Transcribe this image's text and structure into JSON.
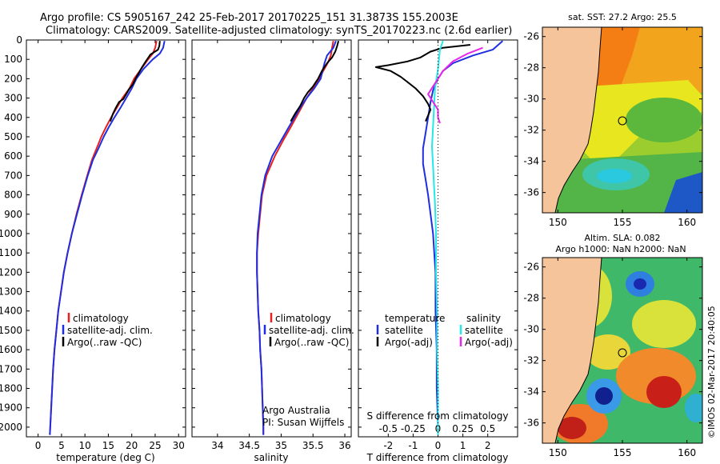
{
  "header": {
    "line1": "Argo profile: CS 5905167_242 25-Feb-2017 20170225_151 31.3873S 155.2003E",
    "line2": "Climatology: CARS2009. Satellite-adjusted climatology: synTS_20170223.nc (2.6d earlier)"
  },
  "depth_ticks": [
    "0",
    "100",
    "200",
    "300",
    "400",
    "500",
    "600",
    "700",
    "800",
    "900",
    "1000",
    "1100",
    "1200",
    "1300",
    "1400",
    "1500",
    "1600",
    "1700",
    "1800",
    "1900",
    "2000"
  ],
  "colors": {
    "climatology": "#e8201f",
    "satellite": "#1f2ee0",
    "argo": "#000000",
    "sal_sat": "#26e8e8",
    "sal_argo": "#e826e8",
    "land": "#f6c49a"
  },
  "chart_data": [
    {
      "type": "line",
      "id": "temperature",
      "xlabel": "temperature (deg C)",
      "xticks": [
        "0",
        "5",
        "10",
        "15",
        "20",
        "25",
        "30"
      ],
      "xlim": [
        -2.5,
        31.5
      ],
      "ylim": [
        0,
        2050
      ],
      "legend": [
        "climatology",
        "satellite-adj. clim.",
        "Argo(..raw -QC)"
      ],
      "series": [
        {
          "name": "climatology",
          "color": "#e8201f",
          "points": [
            [
              25.3,
              5
            ],
            [
              25,
              40
            ],
            [
              24.5,
              70
            ],
            [
              23.5,
              100
            ],
            [
              22,
              150
            ],
            [
              20.5,
              200
            ],
            [
              19.5,
              250
            ],
            [
              18,
              300
            ],
            [
              16.8,
              350
            ],
            [
              15.6,
              400
            ],
            [
              14.5,
              450
            ],
            [
              13.5,
              500
            ],
            [
              12.5,
              560
            ],
            [
              11.5,
              620
            ],
            [
              10.5,
              700
            ],
            [
              9.3,
              800
            ],
            [
              8.2,
              900
            ],
            [
              7.2,
              1000
            ],
            [
              6.3,
              1100
            ],
            [
              5.5,
              1200
            ],
            [
              4.9,
              1300
            ],
            [
              4.3,
              1400
            ],
            [
              3.9,
              1500
            ],
            [
              3.5,
              1600
            ],
            [
              3.2,
              1700
            ],
            [
              3,
              1800
            ],
            [
              2.8,
              1900
            ],
            [
              2.6,
              2000
            ],
            [
              2.5,
              2040
            ]
          ]
        },
        {
          "name": "satellite-adj. clim.",
          "color": "#1f2ee0",
          "points": [
            [
              27,
              5
            ],
            [
              26.7,
              40
            ],
            [
              26,
              70
            ],
            [
              24.5,
              100
            ],
            [
              22.5,
              150
            ],
            [
              21,
              200
            ],
            [
              20,
              250
            ],
            [
              18.8,
              300
            ],
            [
              17.6,
              350
            ],
            [
              16.3,
              400
            ],
            [
              15.1,
              450
            ],
            [
              14,
              500
            ],
            [
              12.9,
              560
            ],
            [
              11.7,
              620
            ],
            [
              10.6,
              700
            ],
            [
              9.4,
              800
            ],
            [
              8.3,
              900
            ],
            [
              7.2,
              1000
            ],
            [
              6.3,
              1100
            ],
            [
              5.5,
              1200
            ],
            [
              4.9,
              1300
            ],
            [
              4.3,
              1400
            ],
            [
              3.9,
              1500
            ],
            [
              3.5,
              1600
            ],
            [
              3.2,
              1700
            ],
            [
              3,
              1800
            ],
            [
              2.8,
              1900
            ],
            [
              2.6,
              2000
            ],
            [
              2.5,
              2040
            ]
          ]
        },
        {
          "name": "Argo(..raw -QC)",
          "color": "#000000",
          "points": [
            [
              26,
              5
            ],
            [
              25.9,
              30
            ],
            [
              25.6,
              50
            ],
            [
              24,
              75
            ],
            [
              23,
              110
            ],
            [
              22.2,
              140
            ],
            [
              21.5,
              170
            ],
            [
              20.8,
              200
            ],
            [
              20.2,
              230
            ],
            [
              19.4,
              255
            ],
            [
              18.8,
              280
            ],
            [
              18.2,
              305
            ],
            [
              17.3,
              320
            ],
            [
              16.6,
              350
            ],
            [
              16,
              380
            ],
            [
              15.4,
              420
            ]
          ]
        }
      ]
    },
    {
      "type": "line",
      "id": "salinity",
      "xlabel": "salinity",
      "xticks": [
        "34",
        "34.5",
        "35",
        "35.5",
        "36"
      ],
      "xlim": [
        33.6,
        36.1
      ],
      "ylim": [
        0,
        2050
      ],
      "legend": [
        "climatology",
        "satellite-adj. clim.",
        "Argo(..raw -QC)"
      ],
      "annotation": [
        "Argo Australia",
        "PI: Susan Wijffels"
      ],
      "series": [
        {
          "name": "climatology",
          "color": "#e8201f",
          "points": [
            [
              35.82,
              5
            ],
            [
              35.8,
              40
            ],
            [
              35.78,
              80
            ],
            [
              35.73,
              120
            ],
            [
              35.66,
              160
            ],
            [
              35.6,
              200
            ],
            [
              35.5,
              250
            ],
            [
              35.4,
              300
            ],
            [
              35.3,
              360
            ],
            [
              35.15,
              450
            ],
            [
              35.03,
              520
            ],
            [
              34.9,
              600
            ],
            [
              34.77,
              700
            ],
            [
              34.7,
              800
            ],
            [
              34.67,
              900
            ],
            [
              34.64,
              1000
            ],
            [
              34.62,
              1100
            ],
            [
              34.62,
              1200
            ],
            [
              34.63,
              1300
            ],
            [
              34.64,
              1400
            ],
            [
              34.66,
              1500
            ],
            [
              34.67,
              1600
            ],
            [
              34.69,
              1700
            ],
            [
              34.7,
              1800
            ],
            [
              34.71,
              1900
            ],
            [
              34.72,
              2000
            ],
            [
              34.72,
              2040
            ]
          ]
        },
        {
          "name": "satellite-adj. clim.",
          "color": "#1f2ee0",
          "points": [
            [
              35.86,
              5
            ],
            [
              35.82,
              40
            ],
            [
              35.72,
              80
            ],
            [
              35.68,
              120
            ],
            [
              35.65,
              160
            ],
            [
              35.62,
              200
            ],
            [
              35.52,
              250
            ],
            [
              35.4,
              300
            ],
            [
              35.28,
              360
            ],
            [
              35.12,
              450
            ],
            [
              35,
              520
            ],
            [
              34.86,
              600
            ],
            [
              34.75,
              700
            ],
            [
              34.69,
              800
            ],
            [
              34.66,
              900
            ],
            [
              34.63,
              1000
            ],
            [
              34.62,
              1100
            ],
            [
              34.62,
              1200
            ],
            [
              34.63,
              1300
            ],
            [
              34.64,
              1400
            ],
            [
              34.66,
              1500
            ],
            [
              34.67,
              1600
            ],
            [
              34.69,
              1700
            ],
            [
              34.7,
              1800
            ],
            [
              34.71,
              1900
            ],
            [
              34.72,
              2000
            ],
            [
              34.72,
              2040
            ]
          ]
        },
        {
          "name": "Argo(..raw -QC)",
          "color": "#000000",
          "points": [
            [
              35.9,
              5
            ],
            [
              35.88,
              30
            ],
            [
              35.85,
              60
            ],
            [
              35.8,
              90
            ],
            [
              35.72,
              120
            ],
            [
              35.64,
              160
            ],
            [
              35.58,
              200
            ],
            [
              35.5,
              240
            ],
            [
              35.42,
              270
            ],
            [
              35.36,
              300
            ],
            [
              35.3,
              340
            ],
            [
              35.22,
              380
            ],
            [
              35.15,
              420
            ]
          ]
        }
      ]
    },
    {
      "type": "line",
      "id": "difference",
      "xlabel": "T difference from climatology",
      "xlabel_top": "S difference from climatology",
      "xticks": [
        "-2",
        "-1",
        "0",
        "1",
        "2"
      ],
      "xticks_top": [
        "-0.5",
        "-0.25",
        "0",
        "0.25",
        "0.5"
      ],
      "xlim": [
        -3.2,
        3.2
      ],
      "ylim": [
        0,
        2050
      ],
      "legend_temperature": {
        "title": "temperature",
        "items": [
          "satellite",
          "Argo(-adj)"
        ]
      },
      "legend_salinity": {
        "title": "salinity",
        "items": [
          "satellite",
          "Argo(-adj)"
        ]
      },
      "series": [
        {
          "name": "satellite",
          "group": "temperature",
          "color": "#1f2ee0",
          "points": [
            [
              2.6,
              5
            ],
            [
              2.2,
              50
            ],
            [
              1.4,
              80
            ],
            [
              0.6,
              120
            ],
            [
              0.2,
              160
            ],
            [
              0,
              200
            ],
            [
              -0.2,
              260
            ],
            [
              -0.3,
              320
            ],
            [
              -0.4,
              400
            ],
            [
              -0.5,
              480
            ],
            [
              -0.6,
              560
            ],
            [
              -0.6,
              640
            ],
            [
              -0.5,
              720
            ],
            [
              -0.4,
              800
            ],
            [
              -0.3,
              900
            ],
            [
              -0.2,
              1000
            ],
            [
              -0.15,
              1100
            ],
            [
              -0.1,
              1200
            ],
            [
              -0.1,
              1400
            ],
            [
              -0.05,
              1600
            ],
            [
              -0.05,
              1800
            ],
            [
              0,
              2000
            ],
            [
              0,
              2040
            ]
          ]
        },
        {
          "name": "Argo(-adj)",
          "group": "temperature",
          "color": "#000000",
          "points": [
            [
              1.3,
              25
            ],
            [
              0.2,
              40
            ],
            [
              -0.3,
              60
            ],
            [
              -0.7,
              90
            ],
            [
              -1.2,
              110
            ],
            [
              -2,
              130
            ],
            [
              -2.5,
              140
            ],
            [
              -1.9,
              160
            ],
            [
              -1.5,
              190
            ],
            [
              -1.2,
              220
            ],
            [
              -0.9,
              250
            ],
            [
              -0.6,
              290
            ],
            [
              -0.4,
              330
            ],
            [
              -0.3,
              360
            ],
            [
              -0.4,
              390
            ],
            [
              -0.5,
              420
            ]
          ]
        },
        {
          "name": "satellite",
          "group": "salinity",
          "color": "#26e8e8",
          "points": [
            [
              0.05,
              5
            ],
            [
              0.02,
              50
            ],
            [
              0.01,
              100
            ],
            [
              0,
              150
            ],
            [
              -0.03,
              250
            ],
            [
              -0.04,
              350
            ],
            [
              -0.05,
              450
            ],
            [
              -0.06,
              550
            ],
            [
              -0.05,
              650
            ],
            [
              -0.04,
              750
            ],
            [
              -0.03,
              850
            ],
            [
              -0.02,
              1000
            ],
            [
              -0.02,
              1200
            ],
            [
              -0.01,
              1400
            ],
            [
              -0.01,
              1600
            ],
            [
              0,
              1800
            ],
            [
              0,
              2000
            ],
            [
              0,
              2040
            ]
          ]
        },
        {
          "name": "Argo(-adj)",
          "group": "salinity",
          "color": "#e826e8",
          "points": [
            [
              0.45,
              40
            ],
            [
              0.3,
              70
            ],
            [
              0.15,
              110
            ],
            [
              0.05,
              160
            ],
            [
              0,
              200
            ],
            [
              -0.05,
              240
            ],
            [
              -0.1,
              280
            ],
            [
              -0.05,
              320
            ],
            [
              0,
              360
            ],
            [
              0,
              400
            ],
            [
              0.02,
              430
            ]
          ]
        }
      ]
    }
  ],
  "maps": {
    "sst": {
      "title": "sat. SST: 27.2 Argo: 25.5",
      "yticks": [
        "-26",
        "-28",
        "-30",
        "-32",
        "-34",
        "-36"
      ],
      "xticks": [
        "150",
        "155",
        "160"
      ],
      "marker": {
        "lon": 155.2,
        "lat": -31.39
      }
    },
    "sla": {
      "title1": "Altim. SLA: 0.082",
      "title2": "Argo h1000: NaN h2000: NaN",
      "yticks": [
        "-26",
        "-28",
        "-30",
        "-32",
        "-34",
        "-36"
      ],
      "xticks": [
        "150",
        "155",
        "160"
      ],
      "marker": {
        "lon": 155.2,
        "lat": -31.39
      }
    }
  },
  "footer": "©IMOS 02-Mar-2017 20:40:05"
}
